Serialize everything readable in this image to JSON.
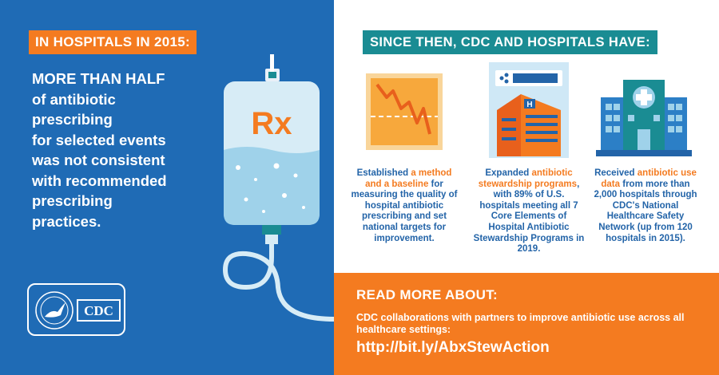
{
  "left_panel": {
    "tag": "IN HOSPITALS IN 2015:",
    "headline_lines": [
      "MORE THAN HALF",
      "of antibiotic",
      "prescribing",
      "for selected events",
      "was not consistent",
      "with recommended",
      "prescribing",
      "practices."
    ],
    "bag_label": "Rx",
    "logo_text": "CDC"
  },
  "right_panel": {
    "tag": "SINCE THEN, CDC AND HOSPITALS HAVE:",
    "columns": [
      {
        "icon": "chart-down-icon",
        "pre": "Established ",
        "highlight": "a method and a baseline",
        "post": " for measuring the quality of hospital antibiotic prescribing and set national targets for improvement."
      },
      {
        "icon": "hospital-building-icon",
        "pre": "Expanded ",
        "highlight": "antibiotic stewardship programs",
        "post": ", with 89% of U.S. hospitals meeting all 7 Core Elements of Hospital Antibiotic Stewardship Programs in 2019."
      },
      {
        "icon": "hospital-cross-icon",
        "pre": "Received ",
        "highlight": "antibiotic use data",
        "post": " from more than 2,000 hospitals through CDC's National Healthcare Safety Network (up from 120 hospitals in 2015)."
      }
    ]
  },
  "read_more": {
    "heading": "READ MORE ABOUT:",
    "description": "CDC collaborations with partners to improve antibiotic use across all healthcare settings:",
    "link": "http://bit.ly/AbxStewAction"
  },
  "colors": {
    "blue": "#1f6bb5",
    "orange": "#f47b20",
    "teal": "#1a8c93"
  }
}
